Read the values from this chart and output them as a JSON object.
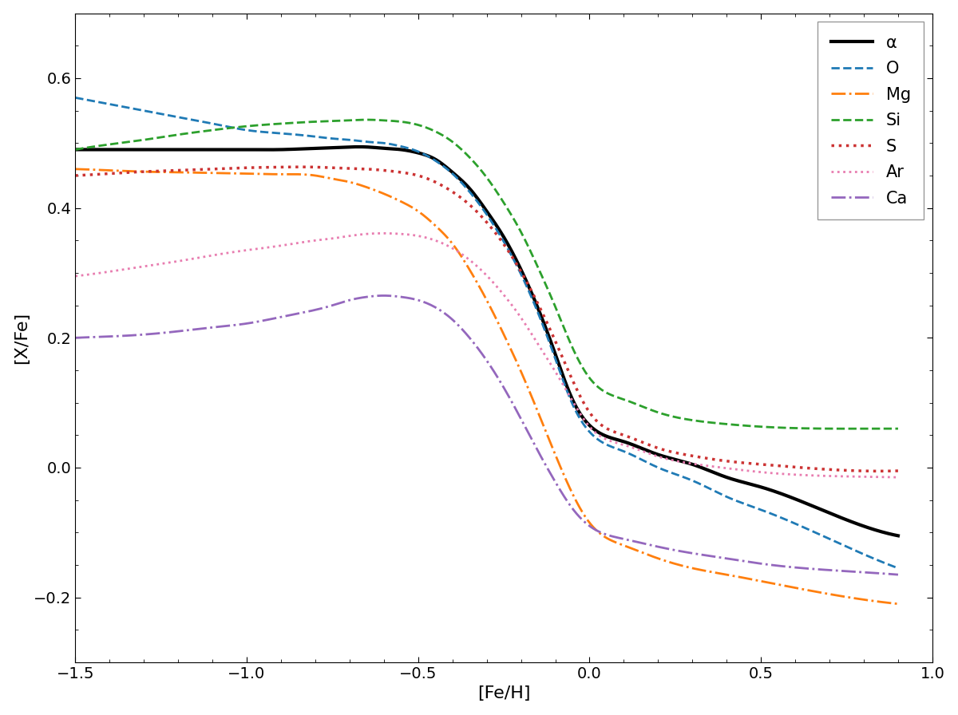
{
  "xlabel": "[Fe/H]",
  "ylabel": "[X/Fe]",
  "xlim": [
    -1.5,
    1.0
  ],
  "ylim": [
    -0.3,
    0.7
  ],
  "background_color": "#ffffff",
  "figsize": [
    12.0,
    8.96
  ],
  "dpi": 100,
  "series": {
    "alpha": {
      "color": "#000000",
      "linestyle": "solid",
      "linewidth": 3.0,
      "x": [
        -1.5,
        -1.4,
        -1.3,
        -1.2,
        -1.1,
        -1.0,
        -0.9,
        -0.8,
        -0.75,
        -0.7,
        -0.65,
        -0.6,
        -0.55,
        -0.5,
        -0.45,
        -0.4,
        -0.35,
        -0.3,
        -0.25,
        -0.2,
        -0.15,
        -0.1,
        -0.05,
        0.0,
        0.1,
        0.2,
        0.3,
        0.4,
        0.5,
        0.7,
        0.9
      ],
      "y": [
        0.49,
        0.49,
        0.49,
        0.49,
        0.49,
        0.49,
        0.49,
        0.492,
        0.493,
        0.494,
        0.494,
        0.492,
        0.49,
        0.485,
        0.475,
        0.455,
        0.43,
        0.395,
        0.355,
        0.305,
        0.245,
        0.175,
        0.105,
        0.065,
        0.04,
        0.02,
        0.005,
        -0.015,
        -0.03,
        -0.07,
        -0.105
      ]
    },
    "O": {
      "color": "#1f7ab5",
      "linestyle": "dashed",
      "linewidth": 2.0,
      "x": [
        -1.5,
        -1.4,
        -1.3,
        -1.2,
        -1.1,
        -1.0,
        -0.9,
        -0.8,
        -0.75,
        -0.7,
        -0.65,
        -0.6,
        -0.55,
        -0.5,
        -0.45,
        -0.4,
        -0.35,
        -0.3,
        -0.25,
        -0.2,
        -0.15,
        -0.1,
        -0.05,
        0.0,
        0.1,
        0.2,
        0.3,
        0.4,
        0.5,
        0.7,
        0.9
      ],
      "y": [
        0.57,
        0.56,
        0.55,
        0.54,
        0.53,
        0.52,
        0.515,
        0.51,
        0.507,
        0.505,
        0.502,
        0.5,
        0.495,
        0.487,
        0.473,
        0.453,
        0.425,
        0.39,
        0.348,
        0.298,
        0.238,
        0.168,
        0.098,
        0.055,
        0.025,
        0.0,
        -0.02,
        -0.045,
        -0.065,
        -0.11,
        -0.155
      ]
    },
    "Mg": {
      "color": "#ff7f0e",
      "linestyle": "dashdot",
      "linewidth": 2.0,
      "x": [
        -1.5,
        -1.4,
        -1.3,
        -1.2,
        -1.1,
        -1.0,
        -0.9,
        -0.8,
        -0.75,
        -0.7,
        -0.65,
        -0.6,
        -0.55,
        -0.5,
        -0.45,
        -0.4,
        -0.35,
        -0.3,
        -0.25,
        -0.2,
        -0.15,
        -0.1,
        -0.05,
        0.0,
        0.1,
        0.2,
        0.3,
        0.4,
        0.5,
        0.7,
        0.9
      ],
      "y": [
        0.46,
        0.458,
        0.456,
        0.455,
        0.454,
        0.453,
        0.452,
        0.45,
        0.445,
        0.44,
        0.432,
        0.422,
        0.41,
        0.395,
        0.373,
        0.345,
        0.305,
        0.258,
        0.205,
        0.148,
        0.085,
        0.02,
        -0.04,
        -0.085,
        -0.12,
        -0.14,
        -0.155,
        -0.165,
        -0.175,
        -0.195,
        -0.21
      ]
    },
    "Si": {
      "color": "#2ca02c",
      "linestyle": "dashed",
      "linewidth": 2.0,
      "x": [
        -1.5,
        -1.4,
        -1.3,
        -1.2,
        -1.1,
        -1.0,
        -0.9,
        -0.8,
        -0.75,
        -0.7,
        -0.65,
        -0.6,
        -0.55,
        -0.5,
        -0.45,
        -0.4,
        -0.35,
        -0.3,
        -0.25,
        -0.2,
        -0.15,
        -0.1,
        -0.05,
        0.0,
        0.1,
        0.2,
        0.3,
        0.4,
        0.5,
        0.7,
        0.9
      ],
      "y": [
        0.49,
        0.498,
        0.505,
        0.513,
        0.52,
        0.526,
        0.53,
        0.533,
        0.534,
        0.535,
        0.536,
        0.535,
        0.533,
        0.528,
        0.518,
        0.502,
        0.478,
        0.447,
        0.408,
        0.363,
        0.308,
        0.248,
        0.185,
        0.138,
        0.105,
        0.085,
        0.073,
        0.067,
        0.063,
        0.06,
        0.06
      ]
    },
    "S": {
      "color": "#cc3333",
      "linestyle": "dotted",
      "linewidth": 2.5,
      "x": [
        -1.5,
        -1.4,
        -1.3,
        -1.2,
        -1.1,
        -1.0,
        -0.9,
        -0.8,
        -0.75,
        -0.7,
        -0.65,
        -0.6,
        -0.55,
        -0.5,
        -0.45,
        -0.4,
        -0.35,
        -0.3,
        -0.25,
        -0.2,
        -0.15,
        -0.1,
        -0.05,
        0.0,
        0.1,
        0.2,
        0.3,
        0.4,
        0.5,
        0.7,
        0.9
      ],
      "y": [
        0.45,
        0.453,
        0.456,
        0.458,
        0.46,
        0.462,
        0.463,
        0.463,
        0.462,
        0.461,
        0.46,
        0.458,
        0.455,
        0.45,
        0.44,
        0.425,
        0.405,
        0.378,
        0.344,
        0.302,
        0.252,
        0.195,
        0.135,
        0.085,
        0.05,
        0.03,
        0.018,
        0.01,
        0.005,
        -0.003,
        -0.005
      ]
    },
    "Ar": {
      "color": "#e87db0",
      "linestyle": "dotted",
      "linewidth": 2.0,
      "x": [
        -1.5,
        -1.4,
        -1.3,
        -1.2,
        -1.1,
        -1.0,
        -0.9,
        -0.8,
        -0.75,
        -0.7,
        -0.65,
        -0.6,
        -0.55,
        -0.5,
        -0.45,
        -0.4,
        -0.35,
        -0.3,
        -0.25,
        -0.2,
        -0.15,
        -0.1,
        -0.05,
        0.0,
        0.1,
        0.2,
        0.3,
        0.4,
        0.5,
        0.7,
        0.9
      ],
      "y": [
        0.295,
        0.302,
        0.31,
        0.318,
        0.327,
        0.335,
        0.342,
        0.35,
        0.353,
        0.357,
        0.36,
        0.361,
        0.36,
        0.357,
        0.35,
        0.338,
        0.32,
        0.296,
        0.266,
        0.231,
        0.19,
        0.148,
        0.103,
        0.063,
        0.035,
        0.017,
        0.006,
        -0.001,
        -0.007,
        -0.013,
        -0.015
      ]
    },
    "Ca": {
      "color": "#9467bd",
      "linestyle": "dashdot",
      "linewidth": 2.0,
      "x": [
        -1.5,
        -1.4,
        -1.3,
        -1.2,
        -1.1,
        -1.0,
        -0.9,
        -0.8,
        -0.75,
        -0.7,
        -0.65,
        -0.6,
        -0.55,
        -0.5,
        -0.45,
        -0.4,
        -0.35,
        -0.3,
        -0.25,
        -0.2,
        -0.15,
        -0.1,
        -0.05,
        0.0,
        0.1,
        0.2,
        0.3,
        0.4,
        0.5,
        0.7,
        0.9
      ],
      "y": [
        0.2,
        0.202,
        0.205,
        0.21,
        0.216,
        0.222,
        0.232,
        0.243,
        0.25,
        0.258,
        0.263,
        0.265,
        0.263,
        0.258,
        0.247,
        0.228,
        0.2,
        0.165,
        0.123,
        0.075,
        0.025,
        -0.022,
        -0.063,
        -0.09,
        -0.11,
        -0.122,
        -0.132,
        -0.14,
        -0.148,
        -0.158,
        -0.165
      ]
    }
  },
  "legend_labels": [
    "α",
    "O",
    "Mg",
    "Si",
    "S",
    "Ar",
    "Ca"
  ],
  "legend_loc": "upper right",
  "tick_labelsize": 14,
  "axis_labelsize": 16
}
